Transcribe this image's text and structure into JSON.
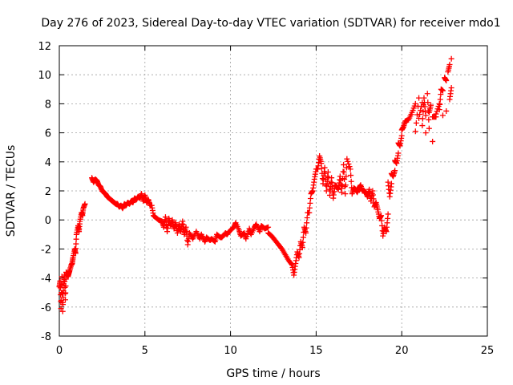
{
  "chart_data": {
    "type": "scatter",
    "title": "Day 276 of 2023, Sidereal Day-to-day VTEC variation (SDTVAR) for receiver mdo1",
    "xlabel": "GPS time / hours",
    "ylabel": "SDTVAR / TECUs",
    "xlim": [
      0,
      25
    ],
    "ylim": [
      -8,
      12
    ],
    "x_ticks": [
      "0",
      "5",
      "10",
      "15",
      "20",
      "25"
    ],
    "y_ticks": [
      "-8",
      "-6",
      "-4",
      "-2",
      "0",
      "2",
      "4",
      "6",
      "8",
      "10",
      "12"
    ],
    "grid": true,
    "marker": "plus",
    "series": [
      {
        "name": "mdo1",
        "color": "#ff0000",
        "x": [
          0.0,
          0.1,
          0.2,
          0.05,
          0.15,
          0.25,
          0.3,
          0.4,
          0.5,
          0.6,
          0.7,
          0.8,
          0.9,
          1.0,
          1.1,
          1.2,
          1.3,
          1.4,
          1.5,
          0.35,
          0.55,
          0.75,
          0.95,
          1.15,
          1.35,
          1.9,
          2.0,
          2.1,
          2.2,
          2.3,
          2.4,
          2.5,
          2.6,
          2.7,
          2.8,
          2.9,
          3.0,
          3.2,
          3.4,
          3.6,
          3.8,
          4.0,
          4.2,
          4.4,
          4.6,
          4.8,
          5.0,
          5.2,
          5.4,
          3.1,
          3.3,
          3.5,
          3.7,
          3.9,
          4.1,
          4.3,
          4.5,
          4.7,
          4.9,
          5.1,
          5.3,
          5.5,
          5.6,
          5.8,
          6.0,
          6.2,
          6.4,
          6.6,
          6.8,
          7.0,
          7.2,
          7.4,
          7.6,
          7.8,
          6.1,
          6.3,
          6.5,
          6.7,
          6.9,
          7.1,
          7.3,
          7.5,
          8.0,
          8.3,
          8.6,
          8.9,
          9.2,
          9.5,
          9.8,
          10.0,
          10.2,
          10.5,
          10.8,
          11.1,
          11.4,
          11.7,
          12.0,
          12.2,
          8.2,
          8.5,
          8.8,
          9.1,
          9.4,
          9.7,
          10.3,
          10.6,
          10.9,
          11.2,
          11.5,
          11.8,
          12.2,
          12.4,
          12.6,
          12.8,
          13.0,
          13.2,
          13.4,
          13.6,
          13.8,
          14.0,
          14.2,
          14.4,
          14.6,
          14.8,
          15.0,
          15.2,
          13.7,
          13.9,
          14.1,
          14.3,
          14.5,
          14.7,
          14.9,
          15.1,
          15.3,
          15.5,
          15.7,
          15.9,
          16.1,
          16.3,
          16.5,
          16.7,
          15.4,
          15.6,
          15.8,
          16.0,
          16.2,
          16.4,
          16.6,
          16.8,
          17.0,
          17.2,
          17.4,
          17.6,
          17.8,
          18.0,
          18.2,
          18.4,
          18.6,
          18.8,
          19.0,
          17.1,
          17.3,
          17.5,
          17.7,
          17.9,
          18.1,
          18.3,
          18.5,
          18.7,
          18.9,
          19.1,
          19.2,
          19.3,
          19.4,
          19.5,
          19.6,
          19.7,
          19.8,
          19.9,
          20.0,
          20.1,
          19.2,
          19.4,
          19.6,
          19.8,
          20.0,
          20.2,
          20.4,
          20.6,
          20.8,
          21.0,
          21.2,
          21.4,
          21.6,
          21.8,
          22.0,
          22.2,
          22.4,
          22.6,
          22.8,
          20.8,
          21.0,
          21.2,
          21.4,
          21.6,
          21.8,
          22.0,
          22.2,
          22.4,
          22.6,
          22.8,
          22.9,
          21.3,
          21.5,
          21.7,
          22.3,
          22.5,
          22.7,
          22.9
        ],
        "y": [
          -4.6,
          -6.1,
          -6.3,
          -4.2,
          -3.9,
          -4.4,
          -3.8,
          -3.6,
          -3.9,
          -3.5,
          -3.1,
          -2.6,
          -2.0,
          -1.0,
          -0.4,
          -0.1,
          0.5,
          0.8,
          1.1,
          -5.5,
          -3.7,
          -3.0,
          -2.3,
          -0.8,
          0.3,
          2.9,
          2.6,
          2.8,
          2.7,
          2.4,
          2.3,
          2.0,
          1.9,
          1.8,
          1.6,
          1.5,
          1.4,
          1.2,
          1.1,
          1.0,
          1.1,
          1.2,
          1.3,
          1.5,
          1.6,
          1.8,
          1.7,
          1.4,
          1.0,
          1.3,
          1.1,
          0.9,
          0.8,
          1.0,
          1.1,
          1.2,
          1.4,
          1.5,
          1.3,
          1.2,
          1.0,
          0.3,
          0.2,
          0.0,
          -0.1,
          0.2,
          0.1,
          0.0,
          -0.2,
          -0.3,
          -0.1,
          -0.5,
          -0.9,
          -1.3,
          -0.5,
          -0.8,
          -0.4,
          -0.6,
          -0.9,
          -0.8,
          -1.0,
          -1.7,
          -0.8,
          -1.0,
          -1.2,
          -1.3,
          -1.0,
          -1.2,
          -1.0,
          -0.7,
          -0.5,
          -0.7,
          -0.9,
          -0.6,
          -0.5,
          -0.8,
          -0.6,
          -0.5,
          -1.3,
          -1.5,
          -1.4,
          -1.5,
          -1.2,
          -0.9,
          -0.2,
          -1.1,
          -1.3,
          -1.0,
          -0.3,
          -0.4,
          -0.9,
          -1.1,
          -1.4,
          -1.7,
          -2.0,
          -2.4,
          -2.8,
          -3.1,
          -3.0,
          -2.6,
          -1.9,
          -0.9,
          0.5,
          2.0,
          3.5,
          4.4,
          -3.8,
          -2.2,
          -1.5,
          -0.5,
          0.5,
          1.8,
          2.8,
          3.5,
          3.9,
          3.6,
          3.3,
          2.9,
          2.4,
          2.1,
          1.9,
          1.8,
          2.5,
          2.0,
          1.7,
          1.5,
          2.3,
          3.0,
          3.8,
          4.2,
          3.5,
          2.2,
          1.9,
          2.4,
          2.0,
          1.6,
          1.3,
          0.9,
          0.7,
          0.3,
          -0.5,
          1.8,
          2.1,
          2.2,
          2.0,
          1.9,
          2.1,
          2.0,
          1.2,
          0.1,
          -1.1,
          -0.8,
          0.4,
          1.6,
          2.5,
          3.0,
          3.4,
          3.9,
          4.6,
          5.1,
          5.8,
          6.4,
          2.6,
          3.2,
          4.1,
          5.3,
          6.2,
          6.8,
          6.9,
          7.4,
          8.0,
          8.4,
          8.1,
          7.2,
          6.3,
          5.4,
          7.1,
          8.0,
          8.9,
          9.6,
          10.7,
          6.1,
          7.0,
          6.5,
          6.0,
          7.4,
          7.1,
          7.3,
          7.6,
          7.2,
          7.5,
          8.3,
          9.1,
          8.4,
          8.7,
          7.9,
          9.0,
          9.8,
          10.2,
          11.1
        ]
      }
    ]
  }
}
